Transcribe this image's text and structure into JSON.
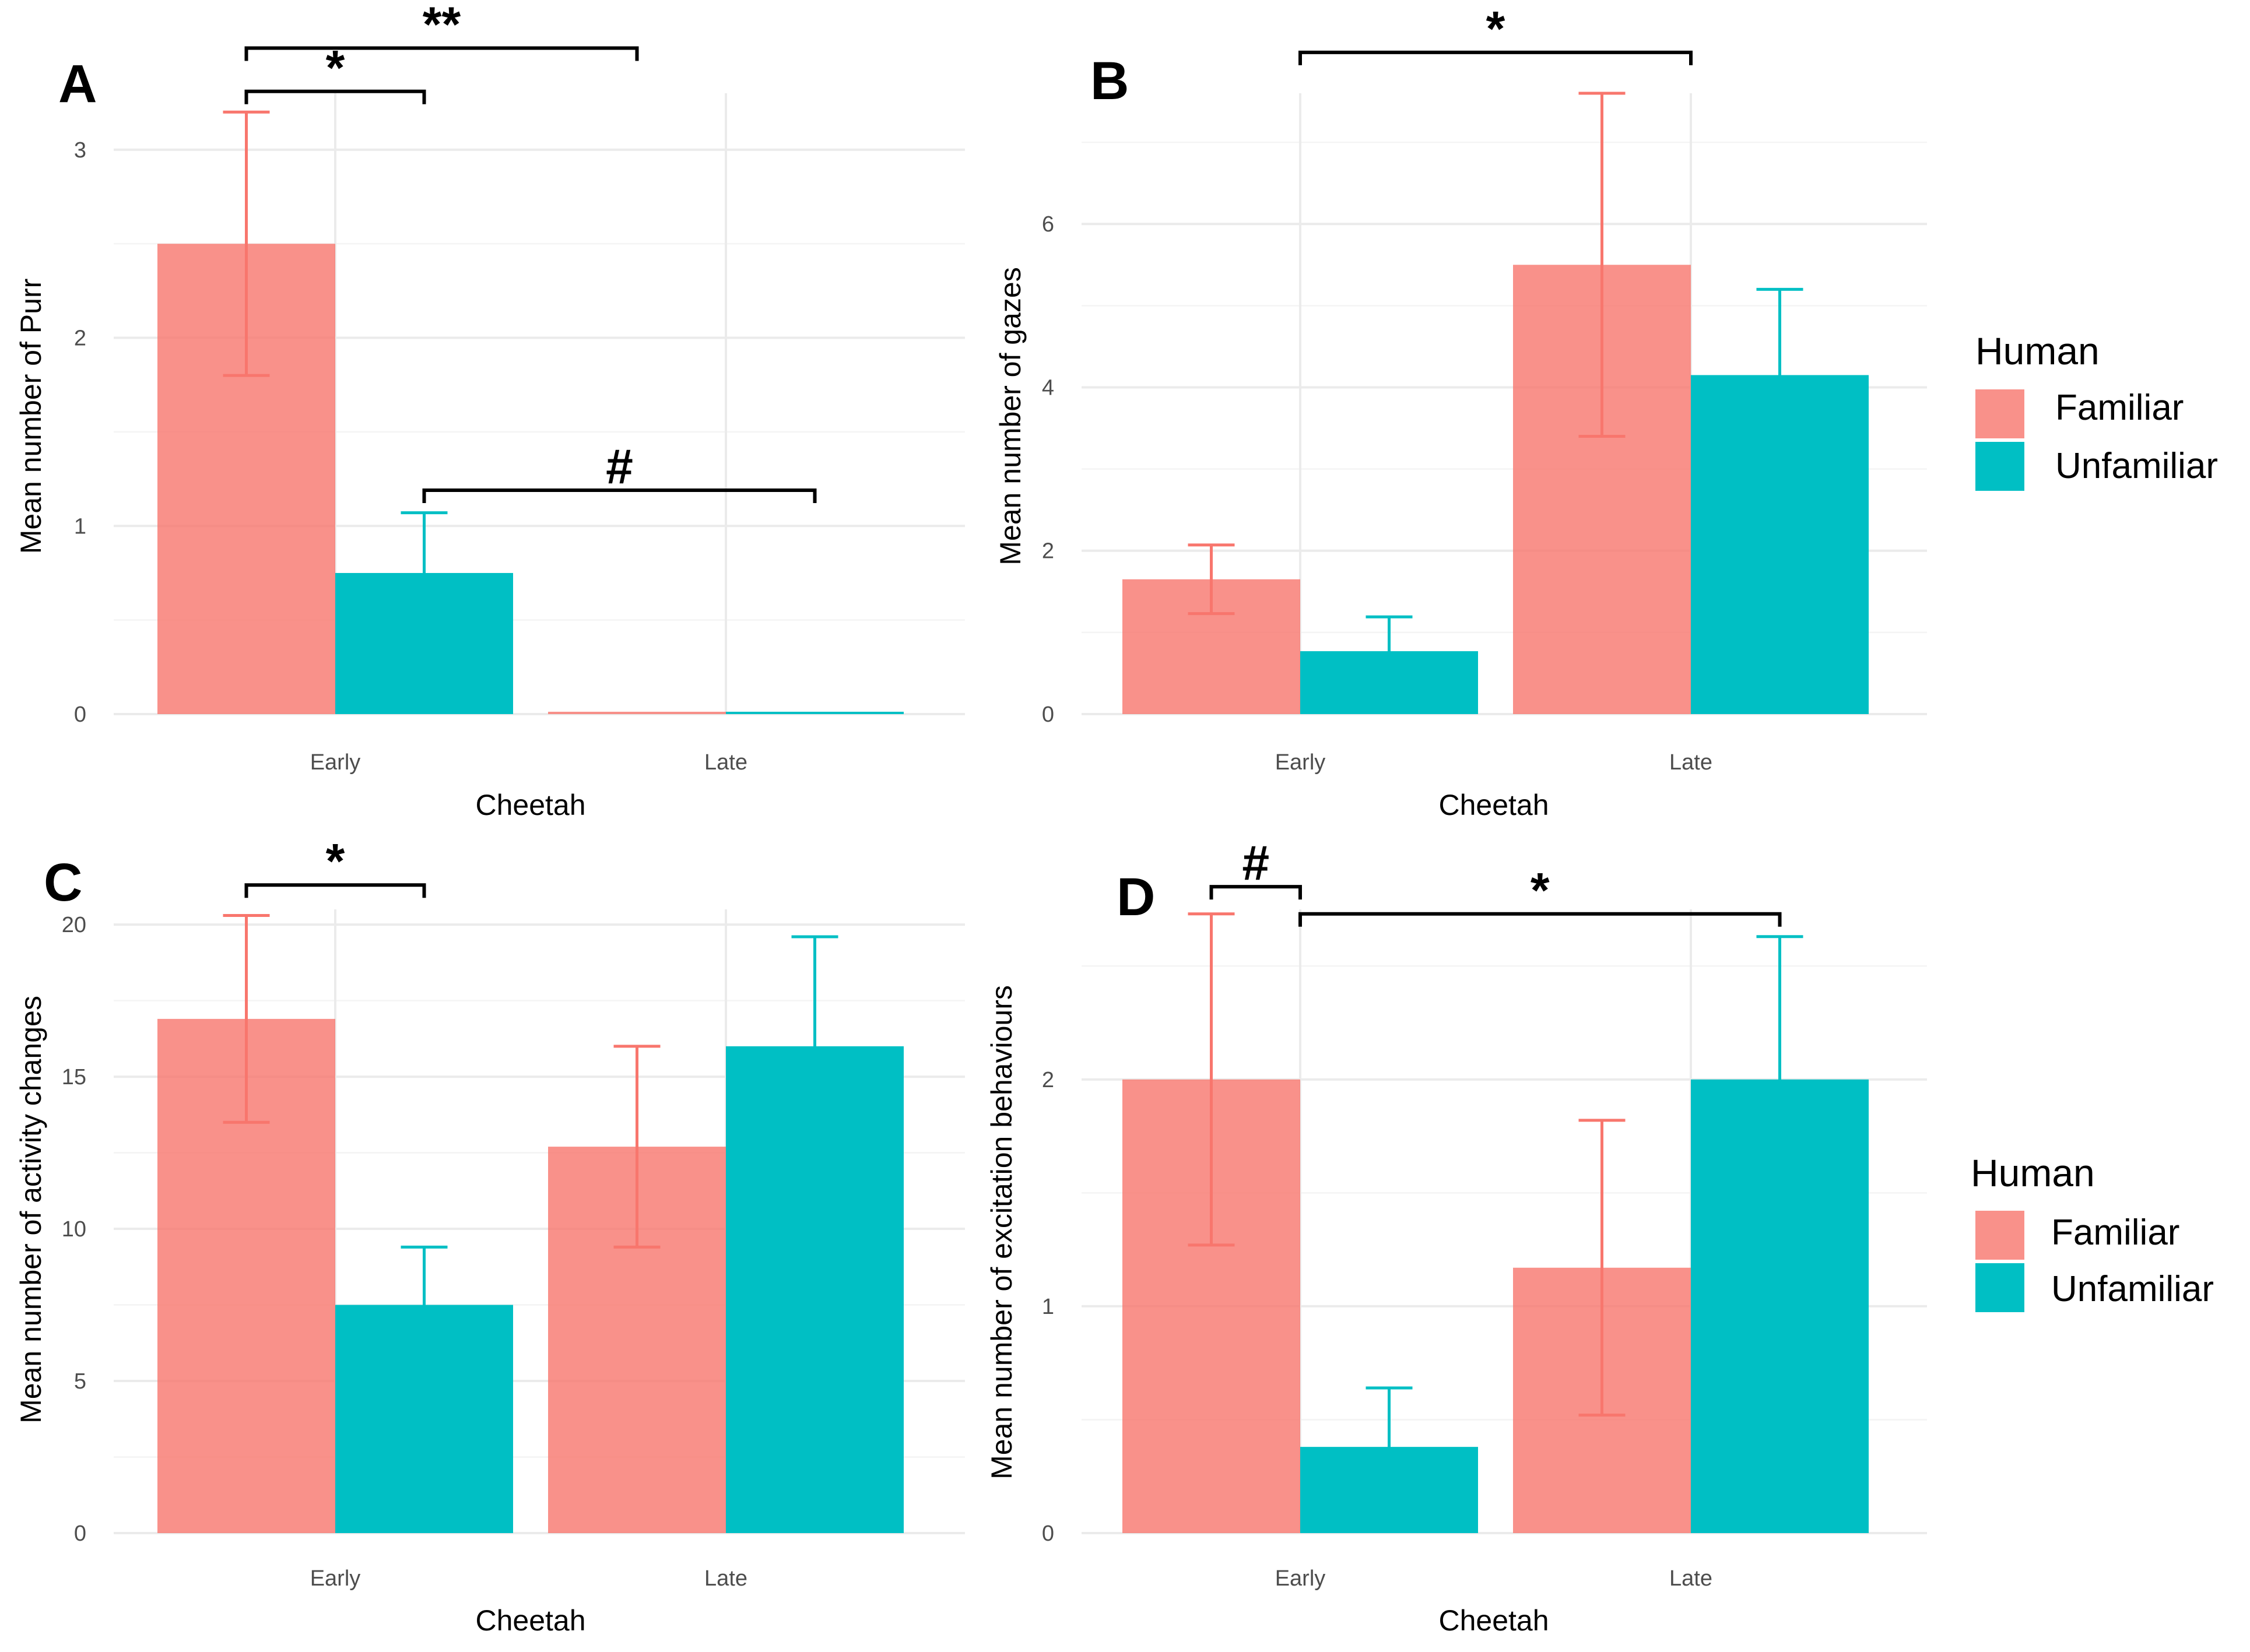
{
  "colors": {
    "familiar": "#F8766D",
    "unfamiliar": "#00BFC4"
  },
  "chart_data": [
    {
      "panel": "A",
      "type": "bar",
      "categories": [
        "Early",
        "Late"
      ],
      "series": [
        {
          "name": "Familiar",
          "values": [
            2.5,
            0.0
          ],
          "errors": [
            0.7,
            0.0
          ]
        },
        {
          "name": "Unfamiliar",
          "values": [
            0.75,
            0.0
          ],
          "errors": [
            0.32,
            0.0
          ]
        }
      ],
      "xlabel": "Cheetah",
      "ylabel": "Mean number of Purr",
      "ylim": [
        0,
        3.3
      ],
      "yticks": [
        0,
        1,
        2,
        3
      ],
      "annotations": [
        {
          "label": "*",
          "from": [
            0,
            "Familiar"
          ],
          "to": [
            0,
            "Unfamiliar"
          ],
          "level": 3.31
        },
        {
          "label": "**",
          "from": [
            0,
            "Familiar"
          ],
          "to": [
            1,
            "Familiar"
          ],
          "level": 3.54
        },
        {
          "label": "#",
          "from": [
            0,
            "Unfamiliar"
          ],
          "to": [
            1,
            "Unfamiliar"
          ],
          "level": 1.19
        }
      ],
      "legend": null
    },
    {
      "panel": "B",
      "type": "bar",
      "categories": [
        "Early",
        "Late"
      ],
      "series": [
        {
          "name": "Familiar",
          "values": [
            1.65,
            5.5
          ],
          "errors": [
            0.42,
            2.1
          ]
        },
        {
          "name": "Unfamiliar",
          "values": [
            0.77,
            4.15
          ],
          "errors": [
            0.42,
            1.05
          ]
        }
      ],
      "xlabel": "Cheetah",
      "ylabel": "Mean number of gazes",
      "ylim": [
        0,
        7.6
      ],
      "yticks": [
        0,
        2,
        4,
        6
      ],
      "annotations": [
        {
          "label": "*",
          "from": [
            0,
            "center"
          ],
          "to": [
            1,
            "center"
          ],
          "level": 8.1
        }
      ],
      "legend": {
        "title": "Human",
        "items": [
          "Familiar",
          "Unfamiliar"
        ]
      }
    },
    {
      "panel": "C",
      "type": "bar",
      "categories": [
        "Early",
        "Late"
      ],
      "series": [
        {
          "name": "Familiar",
          "values": [
            16.9,
            12.7
          ],
          "errors": [
            3.4,
            3.3
          ]
        },
        {
          "name": "Unfamiliar",
          "values": [
            7.5,
            16.0
          ],
          "errors": [
            1.9,
            3.6
          ]
        }
      ],
      "xlabel": "Cheetah",
      "ylabel": "Mean number of activity changes",
      "ylim": [
        0,
        20.5
      ],
      "yticks": [
        0,
        5,
        10,
        15,
        20
      ],
      "annotations": [
        {
          "label": "*",
          "from": [
            0,
            "Familiar"
          ],
          "to": [
            0,
            "Unfamiliar"
          ],
          "level": 21.3
        }
      ],
      "legend": null
    },
    {
      "panel": "D",
      "type": "bar",
      "categories": [
        "Early",
        "Late"
      ],
      "series": [
        {
          "name": "Familiar",
          "values": [
            2.0,
            1.17
          ],
          "errors": [
            0.73,
            0.65
          ]
        },
        {
          "name": "Unfamiliar",
          "values": [
            0.38,
            2.0
          ],
          "errors": [
            0.26,
            0.63
          ]
        }
      ],
      "xlabel": "Cheetah",
      "ylabel": "Mean number of excitation behaviours",
      "ylim": [
        0,
        2.75
      ],
      "yticks": [
        0,
        1,
        2
      ],
      "annotations": [
        {
          "label": "#",
          "from": [
            0,
            "Familiar"
          ],
          "to": [
            0,
            "center"
          ],
          "level": 2.85
        },
        {
          "label": "*",
          "from": [
            0,
            "center"
          ],
          "to": [
            1,
            "Unfamiliar"
          ],
          "level": 2.73
        }
      ],
      "legend": {
        "title": "Human",
        "items": [
          "Familiar",
          "Unfamiliar"
        ]
      }
    }
  ]
}
